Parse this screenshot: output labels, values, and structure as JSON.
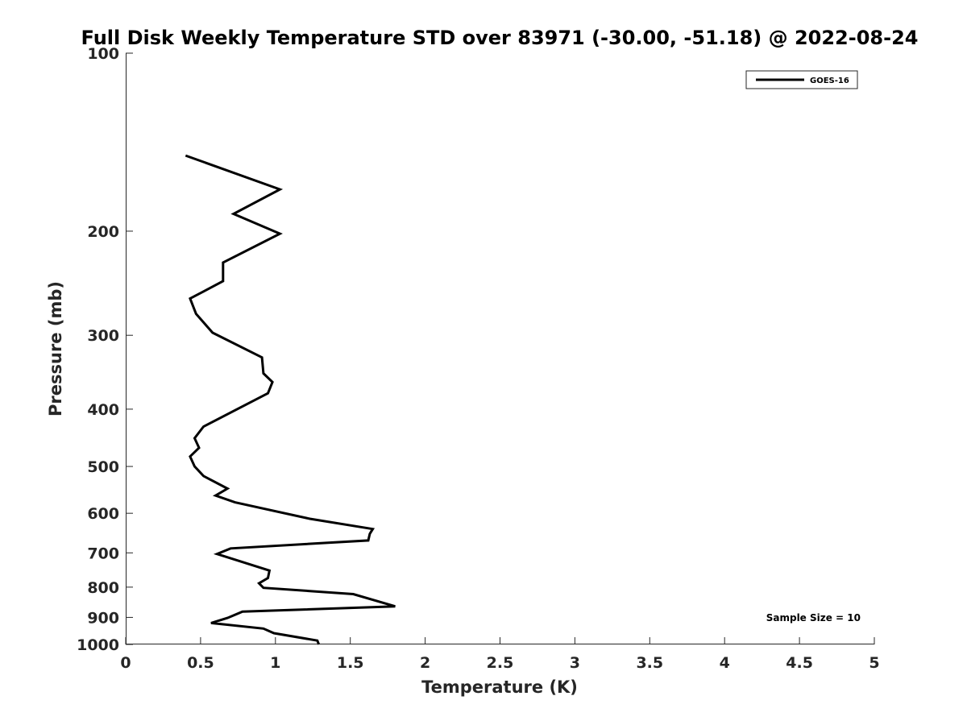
{
  "chart_data": {
    "type": "line",
    "title": "Full Disk Weekly Temperature STD over 83971 (-30.00, -51.18) @ 2022-08-24",
    "xlabel": "Temperature (K)",
    "ylabel": "Pressure (mb)",
    "xlim": [
      0,
      5
    ],
    "ylim": [
      100,
      1000
    ],
    "yscale": "log",
    "y_reversed": true,
    "x_ticks": [
      0,
      0.5,
      1,
      1.5,
      2,
      2.5,
      3,
      3.5,
      4,
      4.5,
      5
    ],
    "x_tick_labels": [
      "0",
      "0.5",
      "1",
      "1.5",
      "2",
      "2.5",
      "3",
      "3.5",
      "4",
      "4.5",
      "5"
    ],
    "y_ticks": [
      100,
      200,
      300,
      400,
      500,
      600,
      700,
      800,
      900,
      1000
    ],
    "y_tick_labels": [
      "100",
      "200",
      "300",
      "400",
      "500",
      "600",
      "700",
      "800",
      "900",
      "1000"
    ],
    "grid": false,
    "legend_position": "top-right",
    "series": [
      {
        "name": "GOES-16",
        "color": "#000000",
        "x": [
          0.4,
          1.03,
          0.72,
          1.03,
          0.65,
          0.65,
          0.43,
          0.47,
          0.58,
          0.91,
          0.92,
          0.98,
          0.95,
          0.52,
          0.46,
          0.49,
          0.43,
          0.46,
          0.52,
          0.68,
          0.6,
          0.73,
          1.23,
          1.65,
          1.63,
          1.62,
          0.7,
          0.61,
          0.82,
          0.96,
          0.95,
          0.89,
          0.92,
          1.52,
          1.8,
          0.78,
          0.68,
          0.57,
          0.92,
          0.99,
          1.28,
          1.29
        ],
        "y": [
          149,
          170,
          187,
          202,
          226,
          243,
          260,
          276,
          297,
          327,
          348,
          360,
          376,
          428,
          448,
          465,
          481,
          500,
          519,
          545,
          560,
          575,
          613,
          638,
          650,
          667,
          688,
          703,
          731,
          750,
          772,
          788,
          802,
          822,
          862,
          880,
          902,
          920,
          940,
          957,
          985,
          1000
        ]
      }
    ],
    "annotation": "Sample Size = 10"
  }
}
